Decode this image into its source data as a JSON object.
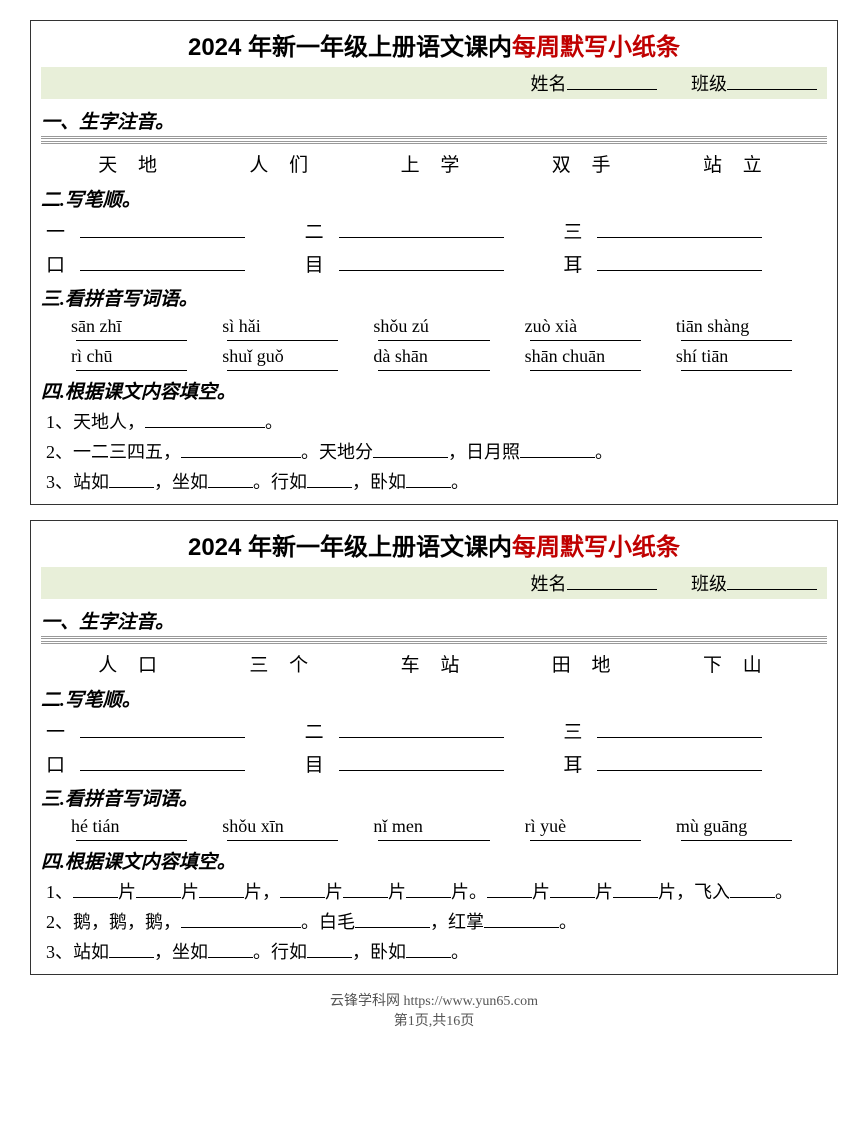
{
  "title_black": "2024 年新一年级上册语文课内",
  "title_red": "每周默写小纸条",
  "name_label": "姓名",
  "class_label": "班级",
  "section1_heading": "一、生字注音。",
  "section2_heading": "二.写笔顺。",
  "section3_heading": "三.看拼音写词语。",
  "section4_heading": "四.根据课文内容填空。",
  "ws1": {
    "words": [
      "天 地",
      "人 们",
      "上 学",
      "双 手",
      "站 立"
    ],
    "strokes_r1": [
      "一",
      "二",
      "三"
    ],
    "strokes_r2": [
      "口",
      "目",
      "耳"
    ],
    "pinyin_r1": [
      "sān zhī",
      "sì hǎi",
      "shǒu zú",
      "zuò xià",
      "tiān shàng"
    ],
    "pinyin_r2": [
      "rì chū",
      "shuǐ guǒ",
      "dà shān",
      "shān chuān",
      "shí tiān"
    ],
    "fill1": "1、天地人，",
    "fill1_end": "。",
    "fill2_a": "2、一二三四五，",
    "fill2_b": "。天地分",
    "fill2_c": "，日月照",
    "fill2_d": "。",
    "fill3_a": "3、站如",
    "fill3_b": "，坐如",
    "fill3_c": "。行如",
    "fill3_d": "，卧如",
    "fill3_e": "。"
  },
  "ws2": {
    "words": [
      "人 口",
      "三 个",
      "车 站",
      "田 地",
      "下 山"
    ],
    "strokes_r1": [
      "一",
      "二",
      "三"
    ],
    "strokes_r2": [
      "口",
      "目",
      "耳"
    ],
    "pinyin_r1": [
      "hé tián",
      "shǒu xīn",
      "nǐ men",
      "rì yuè",
      "mù guāng"
    ],
    "fill1_a": "1、",
    "fill1_b": "片",
    "fill1_c": "片",
    "fill1_d": "片，",
    "fill1_e": "片",
    "fill1_f": "片",
    "fill1_g": "片。",
    "fill1_h": "片",
    "fill1_i": "片",
    "fill1_j": "片，飞入",
    "fill1_k": "。",
    "fill2_a": "2、鹅，鹅，鹅，",
    "fill2_b": "。白毛",
    "fill2_c": "，红掌",
    "fill2_d": "。",
    "fill3_a": "3、站如",
    "fill3_b": "，坐如",
    "fill3_c": "。行如",
    "fill3_d": "，卧如",
    "fill3_e": "。"
  },
  "footer_site": "云锋学科网 https://www.yun65.com",
  "footer_page": "第1页,共16页"
}
